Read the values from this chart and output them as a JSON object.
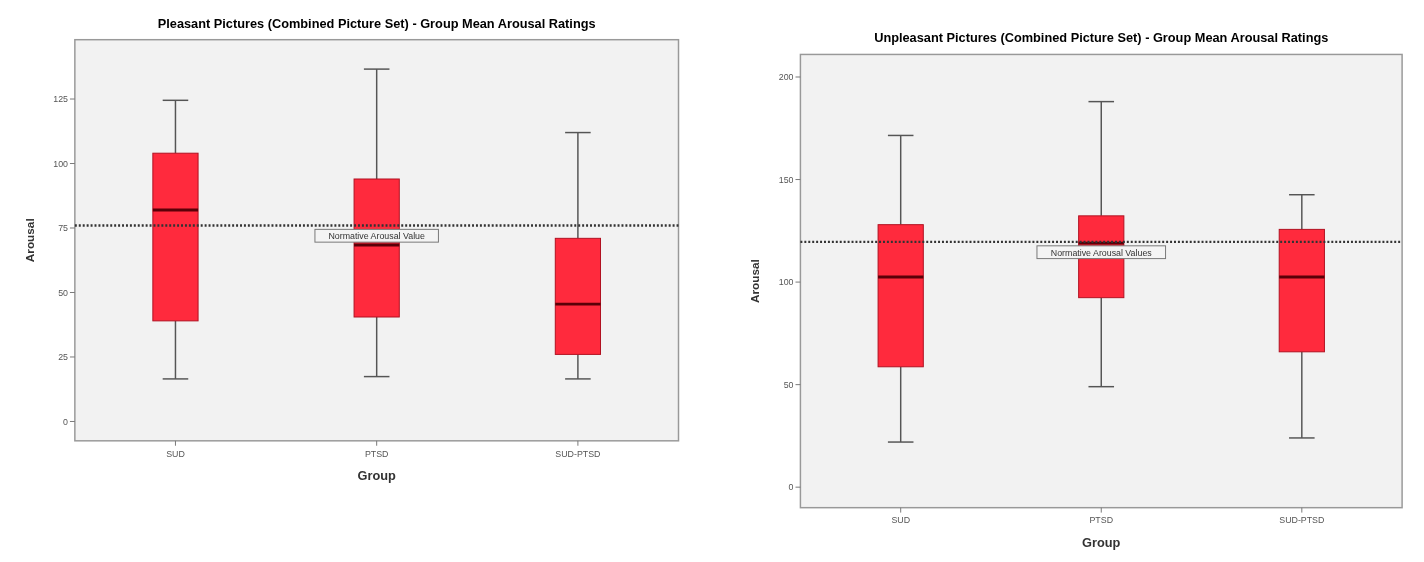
{
  "chart_data": [
    {
      "type": "box",
      "title": "Pleasant Pictures (Combined Picture Set) - Group Mean Arousal Ratings",
      "xlabel": "Group",
      "ylabel": "Arousal",
      "categories": [
        "SUD",
        "PTSD",
        "SUD-PTSD"
      ],
      "color": "#ff2a3d",
      "ylim": [
        -7.5,
        148
      ],
      "yticks": [
        0,
        25,
        50,
        75,
        100,
        125
      ],
      "grid": false,
      "boxes": [
        {
          "low": 16.5,
          "q1": 39,
          "median": 82,
          "q3": 104,
          "high": 124.5
        },
        {
          "low": 17.4,
          "q1": 40.5,
          "median": 68.4,
          "q3": 94,
          "high": 136.6
        },
        {
          "low": 16.5,
          "q1": 26,
          "median": 45.5,
          "q3": 71,
          "high": 112
        }
      ],
      "ref_lines": [
        {
          "axis": "y",
          "value": 76,
          "label": "Normative Arousal Value",
          "line_style": "dotted"
        }
      ]
    },
    {
      "type": "box",
      "title": "Unpleasant Pictures (Combined Picture Set) - Group Mean Arousal Ratings",
      "xlabel": "Group",
      "ylabel": "Arousal",
      "categories": [
        "SUD",
        "PTSD",
        "SUD-PTSD"
      ],
      "color": "#ff2a3d",
      "ylim": [
        -10,
        211
      ],
      "yticks": [
        0,
        50,
        100,
        150,
        200
      ],
      "grid": false,
      "boxes": [
        {
          "low": 22,
          "q1": 58.7,
          "median": 102.5,
          "q3": 128,
          "high": 171.5
        },
        {
          "low": 49,
          "q1": 92.4,
          "median": 119,
          "q3": 132.3,
          "high": 188
        },
        {
          "low": 24,
          "q1": 66,
          "median": 102.5,
          "q3": 125.7,
          "high": 142.6
        }
      ],
      "ref_lines": [
        {
          "axis": "y",
          "value": 119.6,
          "label": "Normative Arousal Values",
          "line_style": "dotted"
        }
      ]
    }
  ]
}
